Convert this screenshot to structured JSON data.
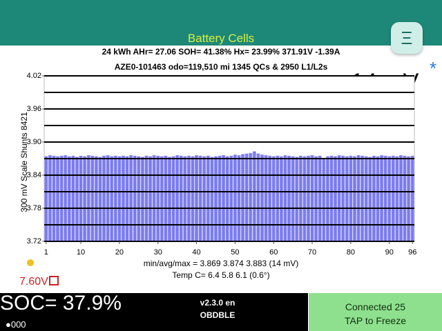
{
  "header": {
    "title": "Battery Cells"
  },
  "info": {
    "line1": "24 kWh  AHr= 27.06  SOH= 41.38%   Hx= 23.99%   371.91V -1.39A",
    "line2": "AZE0-101463 odo=119,510 mi  1345 QCs & 2950 L1/L2s",
    "spread": "14 mV"
  },
  "chart_data": {
    "type": "bar",
    "ylabel": "300 mV Scale   Shunts 8421",
    "x": [
      1,
      2,
      3,
      4,
      5,
      6,
      7,
      8,
      9,
      10,
      11,
      12,
      13,
      14,
      15,
      16,
      17,
      18,
      19,
      20,
      21,
      22,
      23,
      24,
      25,
      26,
      27,
      28,
      29,
      30,
      31,
      32,
      33,
      34,
      35,
      36,
      37,
      38,
      39,
      40,
      41,
      42,
      43,
      44,
      45,
      46,
      47,
      48,
      49,
      50,
      51,
      52,
      53,
      54,
      55,
      56,
      57,
      58,
      59,
      60,
      61,
      62,
      63,
      64,
      65,
      66,
      67,
      68,
      69,
      70,
      71,
      72,
      73,
      74,
      75,
      76,
      77,
      78,
      79,
      80,
      81,
      82,
      83,
      84,
      85,
      86,
      87,
      88,
      89,
      90,
      91,
      92,
      93,
      94,
      95,
      96
    ],
    "values": [
      3.874,
      3.876,
      3.875,
      3.874,
      3.875,
      3.876,
      3.874,
      3.875,
      3.873,
      3.875,
      3.874,
      3.876,
      3.875,
      3.874,
      3.873,
      3.875,
      3.876,
      3.874,
      3.875,
      3.874,
      3.875,
      3.874,
      3.876,
      3.875,
      3.874,
      3.873,
      3.875,
      3.874,
      3.876,
      3.875,
      3.874,
      3.875,
      3.873,
      3.874,
      3.876,
      3.875,
      3.874,
      3.875,
      3.874,
      3.876,
      3.875,
      3.874,
      3.875,
      3.873,
      3.874,
      3.875,
      3.876,
      3.874,
      3.875,
      3.877,
      3.876,
      3.878,
      3.879,
      3.88,
      3.883,
      3.879,
      3.877,
      3.876,
      3.875,
      3.874,
      3.875,
      3.874,
      3.876,
      3.875,
      3.874,
      3.873,
      3.875,
      3.874,
      3.875,
      3.876,
      3.874,
      3.875,
      3.869,
      3.874,
      3.875,
      3.874,
      3.876,
      3.875,
      3.874,
      3.875,
      3.874,
      3.876,
      3.875,
      3.874,
      3.873,
      3.875,
      3.874,
      3.876,
      3.875,
      3.874,
      3.875,
      3.874,
      3.876,
      3.875,
      3.874,
      3.875
    ],
    "color": "#7b7bf0",
    "xlim": [
      0.5,
      96.5
    ],
    "xticks": [
      1,
      10,
      20,
      30,
      40,
      50,
      60,
      70,
      80,
      90,
      96
    ],
    "ylim": [
      3.72,
      4.02
    ],
    "yticks": [
      4.02,
      3.96,
      {
        "value": 3.9,
        "label": "3.90"
      },
      3.84,
      3.78,
      3.72
    ],
    "ygrid": [
      3.72,
      3.75,
      3.78,
      3.81,
      3.84,
      3.87,
      3.9,
      3.93,
      3.96,
      3.99,
      4.02
    ],
    "grid": true,
    "stats": "min/avg/max = 3.869 3.874 3.883  (14 mV)",
    "temps": "Temp C= 6.4  5.8  6.1  (0.6°)"
  },
  "aux_voltage": "7.60V",
  "footer": {
    "soc": "SOC= 37.9%",
    "dots": "●000",
    "version": "v2.3.0 en",
    "adapter": "OBDBLE",
    "status": "Connected 25",
    "action": "TAP to Freeze"
  }
}
